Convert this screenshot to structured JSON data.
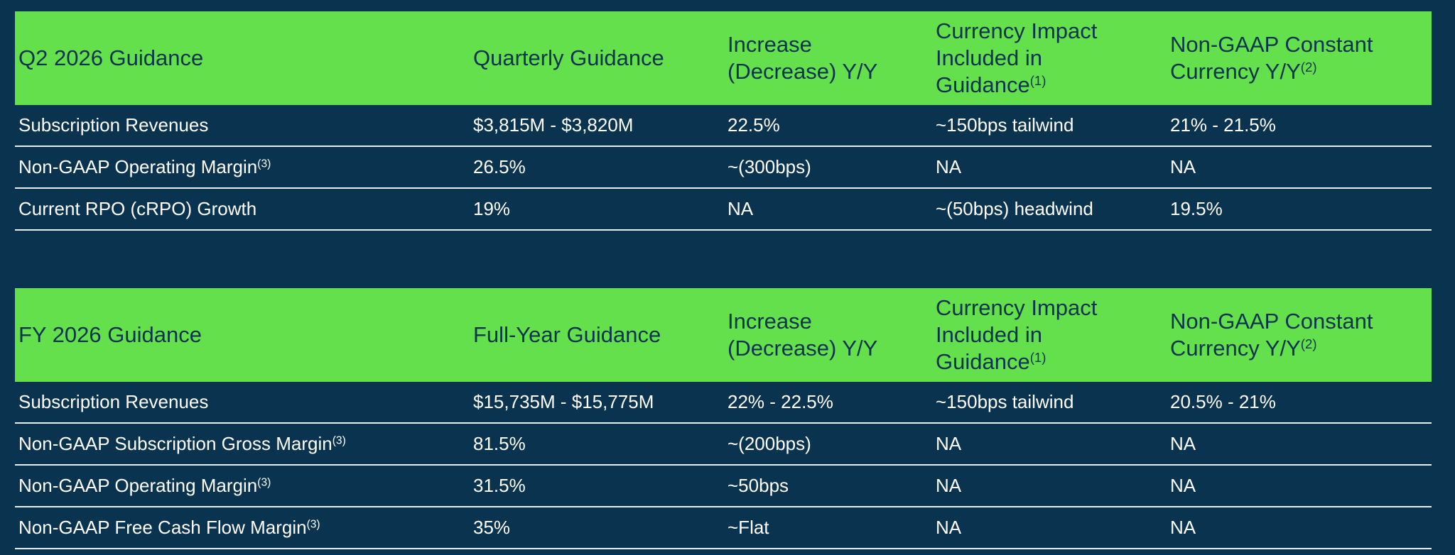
{
  "tables": [
    {
      "headers": [
        {
          "lines": [
            "Q2 2026 Guidance"
          ]
        },
        {
          "lines": [
            "Quarterly Guidance"
          ]
        },
        {
          "lines": [
            "Increase",
            "(Decrease) Y/Y"
          ]
        },
        {
          "lines": [
            "Currency Impact",
            "Included in",
            "Guidance"
          ],
          "note": "(1)"
        },
        {
          "lines": [
            "Non-GAAP Constant",
            "Currency Y/Y"
          ],
          "note": "(2)"
        }
      ],
      "rows": [
        {
          "label": "Subscription Revenues",
          "cells": [
            "$3,815M - $3,820M",
            "22.5%",
            "~150bps tailwind",
            "21% - 21.5%"
          ]
        },
        {
          "label": "Non-GAAP Operating Margin",
          "note": "(3)",
          "cells": [
            "26.5%",
            "~(300bps)",
            "NA",
            "NA"
          ]
        },
        {
          "label": "Current RPO (cRPO) Growth",
          "cells": [
            "19%",
            "NA",
            "~(50bps) headwind",
            "19.5%"
          ]
        }
      ]
    },
    {
      "headers": [
        {
          "lines": [
            "FY 2026 Guidance"
          ]
        },
        {
          "lines": [
            "Full-Year Guidance"
          ]
        },
        {
          "lines": [
            "Increase",
            "(Decrease) Y/Y"
          ]
        },
        {
          "lines": [
            "Currency Impact",
            "Included in",
            "Guidance"
          ],
          "note": "(1)"
        },
        {
          "lines": [
            "Non-GAAP Constant",
            "Currency Y/Y"
          ],
          "note": "(2)"
        }
      ],
      "rows": [
        {
          "label": "Subscription Revenues",
          "cells": [
            "$15,735M - $15,775M",
            "22% - 22.5%",
            "~150bps tailwind",
            "20.5% - 21%"
          ]
        },
        {
          "label": "Non-GAAP Subscription Gross Margin",
          "note": "(3)",
          "cells": [
            "81.5%",
            "~(200bps)",
            "NA",
            "NA"
          ]
        },
        {
          "label": "Non-GAAP Operating Margin",
          "note": "(3)",
          "cells": [
            "31.5%",
            "~50bps",
            "NA",
            "NA"
          ]
        },
        {
          "label": "Non-GAAP Free Cash Flow Margin",
          "note": "(3)",
          "cells": [
            "35%",
            "~Flat",
            "NA",
            "NA"
          ]
        }
      ]
    }
  ]
}
